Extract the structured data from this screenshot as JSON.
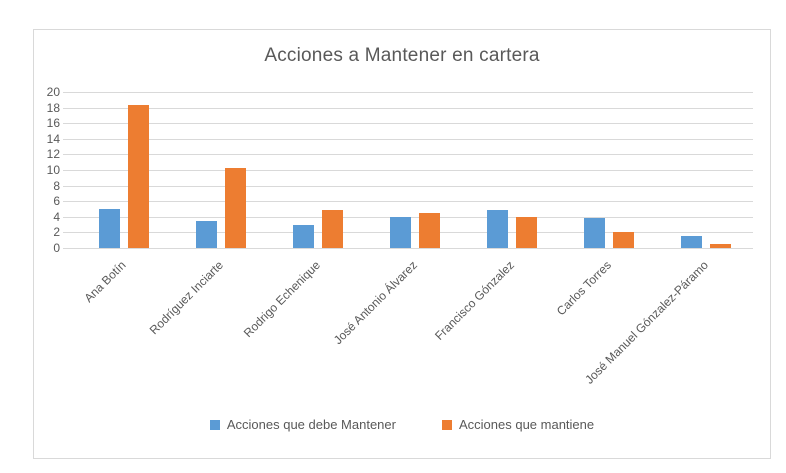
{
  "page": {
    "background": "#ffffff"
  },
  "chart_data": {
    "type": "bar",
    "title": "Acciones a Mantener en cartera",
    "categories": [
      "Ana Botín",
      "Rodríguez Inciarte",
      "Rodrigo Echenique",
      "José Antonio Álvarez",
      "Francisco Gónzalez",
      "Carlos Torres",
      "José Manuel Gónzalez-Páramo"
    ],
    "series": [
      {
        "name": "Acciones que debe Mantener",
        "color": "#5B9BD5",
        "values": [
          5,
          3.5,
          3,
          4,
          4.9,
          3.9,
          1.6
        ]
      },
      {
        "name": "Acciones que mantiene",
        "color": "#ED7D31",
        "values": [
          18.3,
          10.3,
          4.9,
          4.5,
          4,
          2,
          0.5
        ]
      }
    ],
    "xlabel": "",
    "ylabel": "",
    "ylim": [
      0,
      20
    ],
    "ytick_step": 2,
    "grid": true,
    "legend_position": "bottom",
    "text_color": "#595959",
    "gridline_color": "#D9D9D9",
    "border_color": "#D9D9D9"
  }
}
